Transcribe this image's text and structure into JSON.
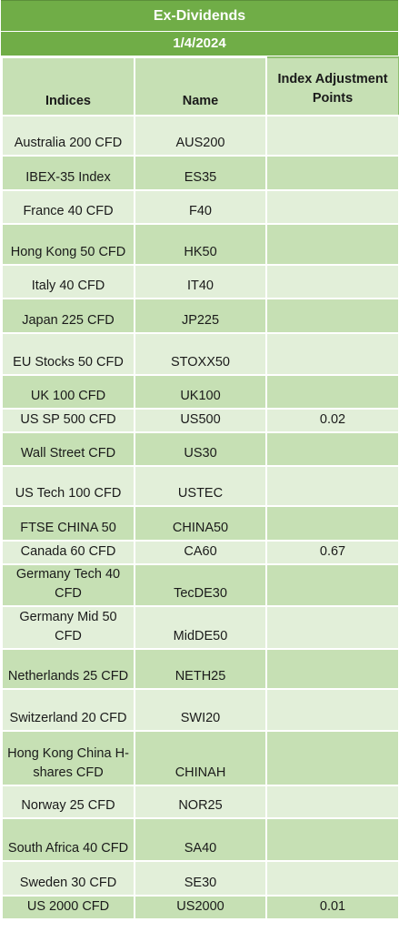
{
  "sheet": {
    "title": "Ex-Dividends",
    "date": "1/4/2024",
    "headers": {
      "indices": "Indices",
      "name": "Name",
      "adjustment": "Index Adjustment Points"
    },
    "rows": [
      {
        "index": "Australia 200 CFD",
        "name": "AUS200",
        "points": ""
      },
      {
        "index": "IBEX-35 Index",
        "name": "ES35",
        "points": ""
      },
      {
        "index": "France 40 CFD",
        "name": "F40",
        "points": ""
      },
      {
        "index": "Hong Kong 50 CFD",
        "name": "HK50",
        "points": ""
      },
      {
        "index": "Italy 40 CFD",
        "name": "IT40",
        "points": ""
      },
      {
        "index": "Japan 225 CFD",
        "name": "JP225",
        "points": ""
      },
      {
        "index": "EU Stocks 50 CFD",
        "name": "STOXX50",
        "points": ""
      },
      {
        "index": "UK 100 CFD",
        "name": "UK100",
        "points": ""
      },
      {
        "index": "US SP 500 CFD",
        "name": "US500",
        "points": "0.02"
      },
      {
        "index": "Wall Street CFD",
        "name": "US30",
        "points": ""
      },
      {
        "index": "US Tech 100 CFD",
        "name": "USTEC",
        "points": ""
      },
      {
        "index": "FTSE CHINA 50",
        "name": "CHINA50",
        "points": ""
      },
      {
        "index": "Canada 60 CFD",
        "name": "CA60",
        "points": "0.67"
      },
      {
        "index": "Germany Tech 40 CFD",
        "name": "TecDE30",
        "points": ""
      },
      {
        "index": "Germany Mid 50 CFD",
        "name": "MidDE50",
        "points": ""
      },
      {
        "index": "Netherlands 25 CFD",
        "name": "NETH25",
        "points": ""
      },
      {
        "index": "Switzerland 20 CFD",
        "name": "SWI20",
        "points": ""
      },
      {
        "index": "Hong Kong China H-shares CFD",
        "name": "CHINAH",
        "points": ""
      },
      {
        "index": "Norway 25 CFD",
        "name": "NOR25",
        "points": ""
      },
      {
        "index": "South Africa 40 CFD",
        "name": "SA40",
        "points": ""
      },
      {
        "index": "Sweden 30 CFD",
        "name": "SE30",
        "points": ""
      },
      {
        "index": "US 2000 CFD",
        "name": "US2000",
        "points": "0.01"
      }
    ]
  }
}
